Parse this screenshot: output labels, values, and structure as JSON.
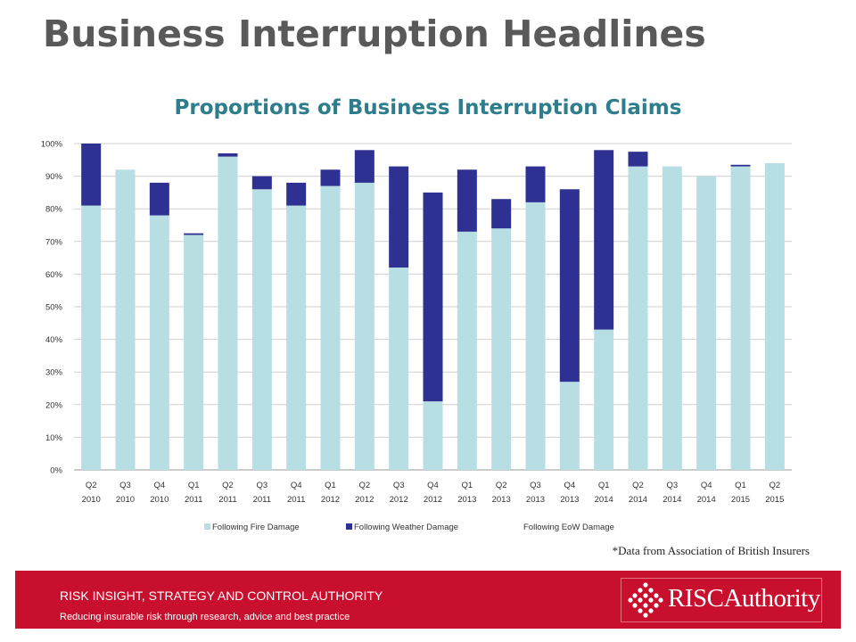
{
  "header": {
    "title": "Business Interruption Headlines"
  },
  "chart_data": {
    "type": "bar",
    "stacked": true,
    "title": "Proportions of Business Interruption Claims",
    "categories": [
      [
        "Q2",
        "2010"
      ],
      [
        "Q3",
        "2010"
      ],
      [
        "Q4",
        "2010"
      ],
      [
        "Q1",
        "2011"
      ],
      [
        "Q2",
        "2011"
      ],
      [
        "Q3",
        "2011"
      ],
      [
        "Q4",
        "2011"
      ],
      [
        "Q1",
        "2012"
      ],
      [
        "Q2",
        "2012"
      ],
      [
        "Q3",
        "2012"
      ],
      [
        "Q4",
        "2012"
      ],
      [
        "Q1",
        "2013"
      ],
      [
        "Q2",
        "2013"
      ],
      [
        "Q3",
        "2013"
      ],
      [
        "Q4",
        "2013"
      ],
      [
        "Q1",
        "2014"
      ],
      [
        "Q2",
        "2014"
      ],
      [
        "Q3",
        "2014"
      ],
      [
        "Q4",
        "2014"
      ],
      [
        "Q1",
        "2015"
      ],
      [
        "Q2",
        "2015"
      ]
    ],
    "series": [
      {
        "name": "Following Fire Damage",
        "color": "#b7dfe3",
        "values": [
          81,
          92,
          78,
          72,
          96,
          86,
          81,
          87,
          88,
          62,
          21,
          73,
          74,
          82,
          27,
          43,
          93,
          93,
          90,
          93,
          94
        ]
      },
      {
        "name": "Following Weather Damage",
        "color": "#2e3192",
        "values": [
          19,
          0,
          10,
          0.5,
          1,
          4,
          7,
          5,
          10,
          31,
          64,
          19,
          9,
          11,
          59,
          55,
          4.5,
          0,
          0,
          0.5,
          0
        ]
      },
      {
        "name": "Following EoW Damage",
        "color": "#ffffff",
        "values": [
          0,
          0,
          0,
          0,
          0,
          0,
          0,
          0,
          0,
          0,
          0,
          0,
          0,
          0,
          0,
          0,
          0,
          0,
          0,
          0,
          0
        ]
      }
    ],
    "ylim": [
      0,
      100
    ],
    "yticks": [
      "0%",
      "10%",
      "20%",
      "30%",
      "40%",
      "50%",
      "60%",
      "70%",
      "80%",
      "90%",
      "100%"
    ],
    "grid": true,
    "legend": "bottom"
  },
  "source_note": "*Data from Association of British Insurers",
  "footer": {
    "line1": "RISK INSIGHT, STRATEGY AND CONTROL AUTHORITY",
    "line2": "Reducing insurable risk through research, advice and best practice",
    "logo_text": "RISCAuthority",
    "background": "#c8102e"
  }
}
